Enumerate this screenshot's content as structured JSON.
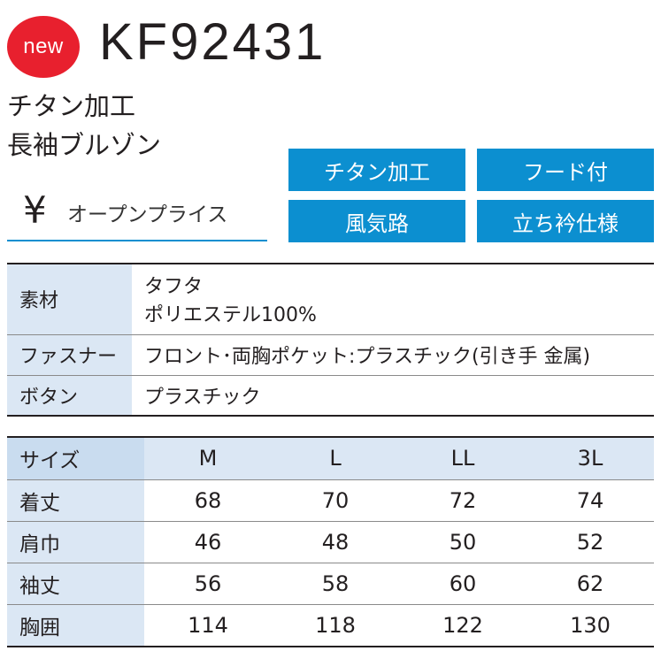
{
  "badge": "new",
  "product_code": "KF92431",
  "subtitle": [
    "チタン加工",
    "長袖ブルゾン"
  ],
  "price": {
    "symbol": "¥",
    "text": "オープンプライス"
  },
  "features": [
    "チタン加工",
    "フード付",
    "風気路",
    "立ち衿仕様"
  ],
  "spec": [
    {
      "label": "素材",
      "lines": [
        "タフタ",
        "ポリエステル100%"
      ]
    },
    {
      "label": "ファスナー",
      "lines": [
        "フロント･両胸ポケット:プラスチック(引き手 金属)"
      ]
    },
    {
      "label": "ボタン",
      "lines": [
        "プラスチック"
      ]
    }
  ],
  "size_table": {
    "header_label": "サイズ",
    "sizes": [
      "M",
      "L",
      "LL",
      "3L"
    ],
    "rows": [
      {
        "label": "着丈",
        "values": [
          "68",
          "70",
          "72",
          "74"
        ]
      },
      {
        "label": "肩巾",
        "values": [
          "46",
          "48",
          "50",
          "52"
        ]
      },
      {
        "label": "袖丈",
        "values": [
          "56",
          "58",
          "60",
          "62"
        ]
      },
      {
        "label": "胸囲",
        "values": [
          "114",
          "118",
          "122",
          "130"
        ]
      }
    ]
  },
  "colors": {
    "accent_blue": "#0c8fd0",
    "badge_red": "#e8202e",
    "header_bg": "#dbe7f4"
  }
}
